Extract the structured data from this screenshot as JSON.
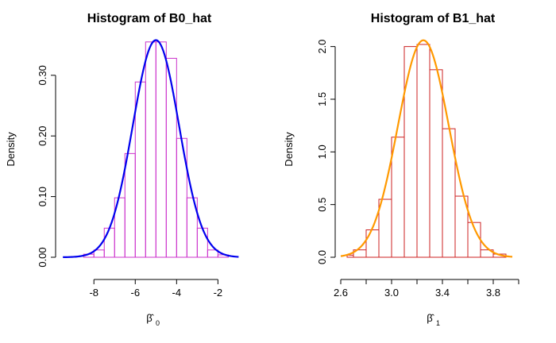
{
  "chart_data": [
    {
      "type": "histogram",
      "title": "Histogram of B0_hat",
      "ylabel": "Density",
      "xlabel": "β̂",
      "xlabel_subscript": "0",
      "x_ticks": [
        -8,
        -6,
        -4,
        -2
      ],
      "x_tick_labels": [
        "-8",
        "-6",
        "-4",
        "-2"
      ],
      "y_ticks": [
        0.0,
        0.1,
        0.2,
        0.3
      ],
      "y_tick_labels": [
        "0.00",
        "0.10",
        "0.20",
        "0.30"
      ],
      "xlim": [
        -9.7,
        -0.9
      ],
      "ylim": [
        0,
        0.36
      ],
      "bin_edges": [
        -8.5,
        -8.0,
        -7.5,
        -7.0,
        -6.5,
        -6.0,
        -5.5,
        -5.0,
        -4.5,
        -4.0,
        -3.5,
        -3.0,
        -2.5,
        -2.0,
        -1.5
      ],
      "densities": [
        0.005,
        0.012,
        0.048,
        0.098,
        0.171,
        0.289,
        0.355,
        0.355,
        0.328,
        0.196,
        0.098,
        0.048,
        0.012,
        0.004
      ],
      "curve": {
        "mean": -5.0,
        "sd": 1.12,
        "peak": 0.358,
        "from": -9.5,
        "to": -1.0
      },
      "bar_color": "#cc33cc",
      "curve_color": "#0000ee",
      "grid": false
    },
    {
      "type": "histogram",
      "title": "Histogram of B1_hat",
      "ylabel": "Density",
      "xlabel": "β̂",
      "xlabel_subscript": "1",
      "x_ticks": [
        2.6,
        2.8,
        3.0,
        3.2,
        3.4,
        3.6,
        3.8,
        4.0
      ],
      "x_tick_labels": [
        "2.6",
        "",
        "3.0",
        "",
        "3.4",
        "",
        "3.8",
        ""
      ],
      "y_ticks": [
        0.0,
        0.5,
        1.0,
        1.5,
        2.0
      ],
      "y_tick_labels": [
        "0.0",
        "0.5",
        "1.0",
        "1.5",
        "2.0"
      ],
      "xlim": [
        2.6,
        4.0
      ],
      "ylim": [
        0,
        2.05
      ],
      "bin_edges": [
        2.65,
        2.7,
        2.8,
        2.9,
        3.0,
        3.1,
        3.2,
        3.3,
        3.4,
        3.5,
        3.6,
        3.7,
        3.8,
        3.9
      ],
      "densities": [
        0.02,
        0.07,
        0.26,
        0.55,
        1.14,
        2.0,
        2.02,
        1.78,
        1.22,
        0.58,
        0.33,
        0.07,
        0.03
      ],
      "curve": {
        "mean": 3.25,
        "sd": 0.2,
        "peak": 2.06,
        "from": 2.6,
        "to": 3.95
      },
      "bar_color": "#cc2222",
      "curve_color": "#ff9900",
      "grid": false
    }
  ]
}
